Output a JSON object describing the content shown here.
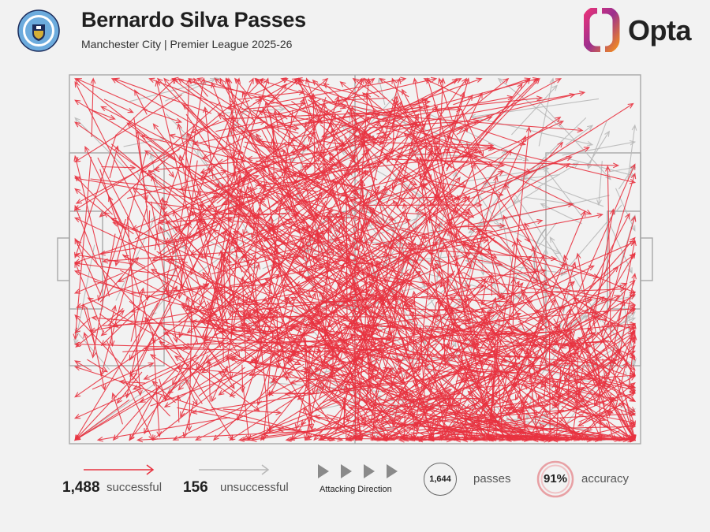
{
  "header": {
    "title": "Bernardo Silva Passes",
    "subtitle": "Manchester City | Premier League 2025-26",
    "brand": "Opta"
  },
  "colors": {
    "successful": "#e8323f",
    "unsuccessful": "#b8b8b8",
    "pitch_lines": "#a9a9a9",
    "background": "#f2f2f2",
    "accuracy_ring": "#e8a0a4",
    "opta_left": "#7b2a8c",
    "opta_right": "#f08a24"
  },
  "icons": {
    "crest": "manchester-city-crest-icon",
    "brand": "opta-logo-icon",
    "direction": "triangle-right-icon"
  },
  "legend": {
    "successful_count": "1,488",
    "successful_label": "successful",
    "unsuccessful_count": "156",
    "unsuccessful_label": "unsuccessful",
    "direction_label": "Attacking Direction",
    "passes_count": "1,644",
    "passes_label": "passes",
    "accuracy_value": "91%",
    "accuracy_label": "accuracy"
  },
  "chart_data": {
    "type": "scatter",
    "x_range": [
      0,
      100
    ],
    "y_range": [
      0,
      100
    ],
    "attacking_direction": "left-to-right",
    "series": [
      {
        "name": "successful",
        "count": 1488
      },
      {
        "name": "unsuccessful",
        "count": 156
      }
    ],
    "total_passes": 1644,
    "accuracy_percent": 91
  }
}
